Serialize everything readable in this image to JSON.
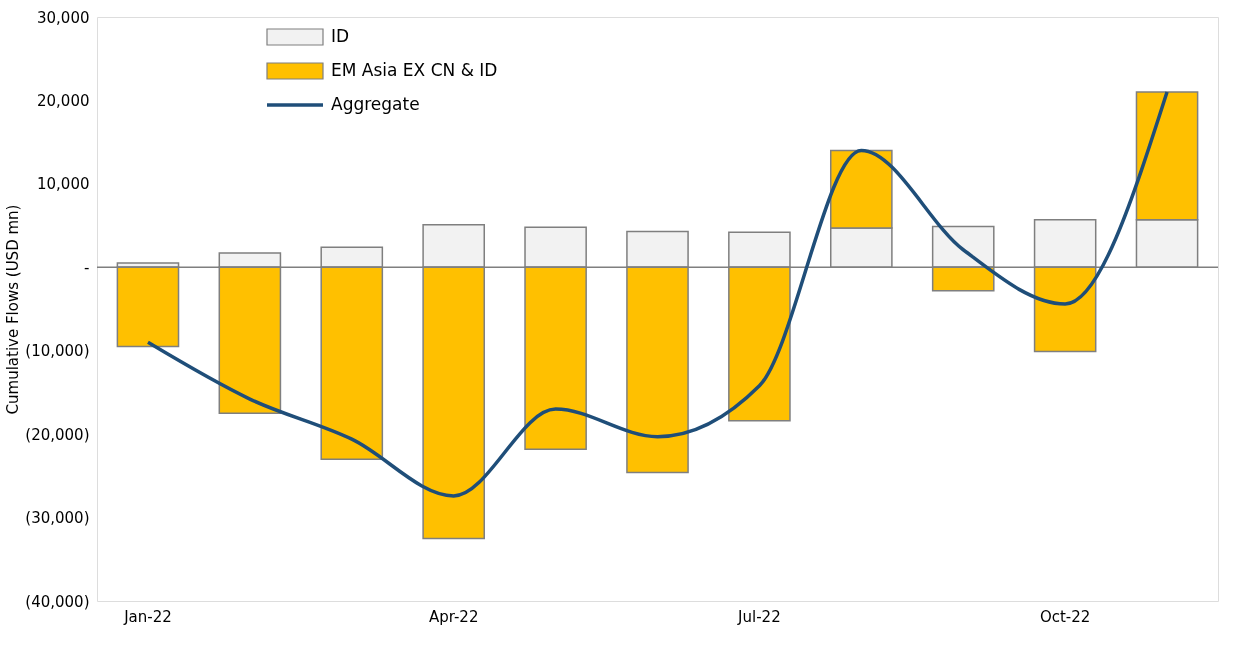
{
  "chart_data": {
    "type": "bar",
    "stacked": true,
    "ylabel": "Cumulative Flows (USD mn)",
    "categories": [
      "Jan-22",
      null,
      null,
      "Apr-22",
      null,
      null,
      "Jul-22",
      null,
      null,
      "Oct-22",
      null
    ],
    "series": [
      {
        "name": "ID",
        "type": "bar",
        "color": "#f2f2f2",
        "values": [
          500,
          1700,
          2400,
          5100,
          4800,
          4300,
          4200,
          4700,
          4900,
          5700,
          5700
        ]
      },
      {
        "name": "EM Asia EX CN & ID",
        "type": "bar",
        "color": "#ffc000",
        "values": [
          -9500,
          -17500,
          -23000,
          -32500,
          -21800,
          -24600,
          -18400,
          9300,
          -2800,
          -10100,
          15300
        ]
      },
      {
        "name": "Aggregate",
        "type": "line",
        "color": "#1f4e79",
        "values": [
          -9000,
          -15800,
          -20600,
          -27400,
          -17000,
          -20300,
          -14200,
          14000,
          2100,
          -4400,
          21000
        ]
      }
    ],
    "ylim": [
      -40000,
      30000
    ],
    "yticks": [
      {
        "value": -40000,
        "label": "(40,000)"
      },
      {
        "value": -30000,
        "label": "(30,000)"
      },
      {
        "value": -20000,
        "label": "(20,000)"
      },
      {
        "value": -10000,
        "label": "(10,000)"
      },
      {
        "value": 0,
        "label": "-"
      },
      {
        "value": 10000,
        "label": "10,000"
      },
      {
        "value": 20000,
        "label": "20,000"
      },
      {
        "value": 30000,
        "label": "30,000"
      }
    ],
    "grid": false,
    "ref_lines": [
      {
        "axis": "y",
        "value": 0,
        "color": "#7f7f7f"
      }
    ],
    "legend": "top left",
    "line_style": "solid",
    "marker": "none"
  }
}
